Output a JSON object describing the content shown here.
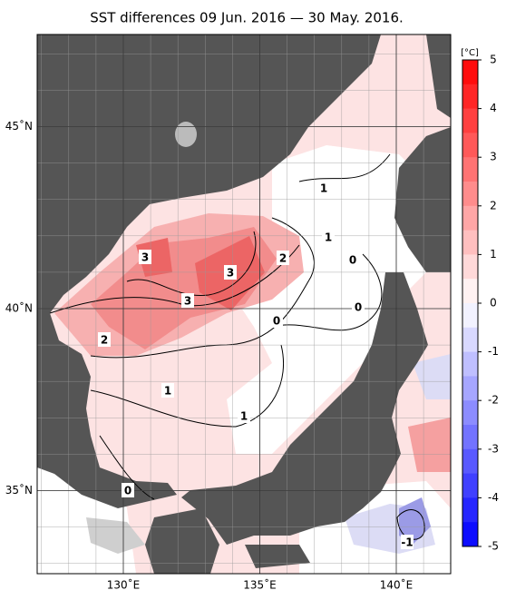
{
  "title": "SST differences 09 Jun. 2016 — 30 May. 2016.",
  "map": {
    "lon_ticks": [
      {
        "value": 130,
        "label": "130˚E"
      },
      {
        "value": 135,
        "label": "135˚E"
      },
      {
        "value": 140,
        "label": "140˚E"
      }
    ],
    "lat_ticks": [
      {
        "value": 45,
        "label": "45˚N"
      },
      {
        "value": 40,
        "label": "40˚N"
      },
      {
        "value": 35,
        "label": "35˚N"
      }
    ],
    "contour_labels": [
      "3",
      "3",
      "3",
      "2",
      "2",
      "1",
      "1",
      "1",
      "1",
      "0",
      "0",
      "0",
      "0",
      "-1"
    ]
  },
  "colorbar": {
    "unit": "[°C]",
    "range": [
      -5,
      5
    ],
    "ticks": [
      5,
      4,
      3,
      2,
      1,
      0,
      -1,
      -2,
      -3,
      -4,
      -5
    ]
  }
}
